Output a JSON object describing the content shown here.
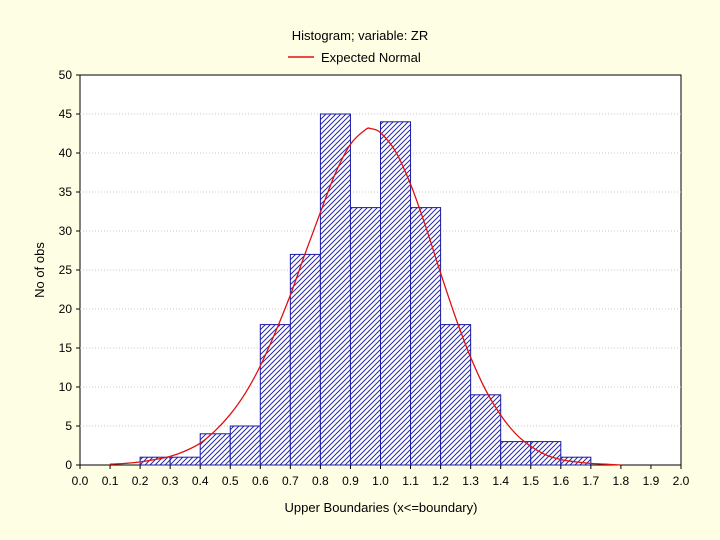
{
  "colors": {
    "background": "#fefee4",
    "plot_area": "#ffffff",
    "bar_stroke": "#1a1aa6",
    "bar_hatch": "#2a2aa8",
    "curve": "#e01010",
    "grid": "#c8c8c8"
  },
  "chart_data": {
    "type": "bar",
    "title": "Histogram; variable: ZR",
    "xlabel": "Upper Boundaries (x<=boundary)",
    "ylabel": "No of obs",
    "xlim": [
      0.0,
      2.0
    ],
    "ylim": [
      0,
      50
    ],
    "grid": true,
    "legend": {
      "position": "top-center",
      "entries": [
        "Expected Normal"
      ]
    },
    "x_ticks": [
      "0.0",
      "0.1",
      "0.2",
      "0.3",
      "0.4",
      "0.5",
      "0.6",
      "0.7",
      "0.8",
      "0.9",
      "1.0",
      "1.1",
      "1.2",
      "1.3",
      "1.4",
      "1.5",
      "1.6",
      "1.7",
      "1.8",
      "1.9",
      "2.0"
    ],
    "y_ticks": [
      "0",
      "5",
      "10",
      "15",
      "20",
      "25",
      "30",
      "35",
      "40",
      "45",
      "50"
    ],
    "bins": [
      {
        "upper": 0.1,
        "count": 0
      },
      {
        "upper": 0.2,
        "count": 0
      },
      {
        "upper": 0.3,
        "count": 1
      },
      {
        "upper": 0.4,
        "count": 1
      },
      {
        "upper": 0.5,
        "count": 4
      },
      {
        "upper": 0.6,
        "count": 5
      },
      {
        "upper": 0.7,
        "count": 18
      },
      {
        "upper": 0.8,
        "count": 27
      },
      {
        "upper": 0.9,
        "count": 45
      },
      {
        "upper": 1.0,
        "count": 33
      },
      {
        "upper": 1.1,
        "count": 44
      },
      {
        "upper": 1.2,
        "count": 33
      },
      {
        "upper": 1.3,
        "count": 18
      },
      {
        "upper": 1.4,
        "count": 9
      },
      {
        "upper": 1.5,
        "count": 3
      },
      {
        "upper": 1.6,
        "count": 3
      },
      {
        "upper": 1.7,
        "count": 1
      },
      {
        "upper": 1.8,
        "count": 0
      },
      {
        "upper": 1.9,
        "count": 0
      },
      {
        "upper": 2.0,
        "count": 0
      }
    ],
    "bin_width": 0.1,
    "expected_normal": {
      "name": "Expected Normal",
      "x": [
        0.1,
        0.15,
        0.2,
        0.25,
        0.3,
        0.35,
        0.4,
        0.45,
        0.5,
        0.55,
        0.6,
        0.65,
        0.7,
        0.75,
        0.8,
        0.85,
        0.9,
        0.95,
        0.97,
        1.0,
        1.05,
        1.1,
        1.15,
        1.2,
        1.25,
        1.3,
        1.35,
        1.4,
        1.45,
        1.5,
        1.55,
        1.6,
        1.65,
        1.7,
        1.75,
        1.8
      ],
      "y": [
        0.1,
        0.2,
        0.4,
        0.7,
        1.1,
        1.8,
        2.8,
        4.4,
        6.5,
        9.2,
        12.7,
        17.0,
        21.8,
        27.2,
        32.4,
        37.4,
        41.1,
        43.0,
        43.1,
        42.6,
        40.2,
        36.0,
        30.6,
        24.6,
        18.9,
        13.8,
        9.6,
        6.4,
        4.0,
        2.4,
        1.3,
        0.7,
        0.4,
        0.2,
        0.1,
        0.0
      ]
    }
  }
}
